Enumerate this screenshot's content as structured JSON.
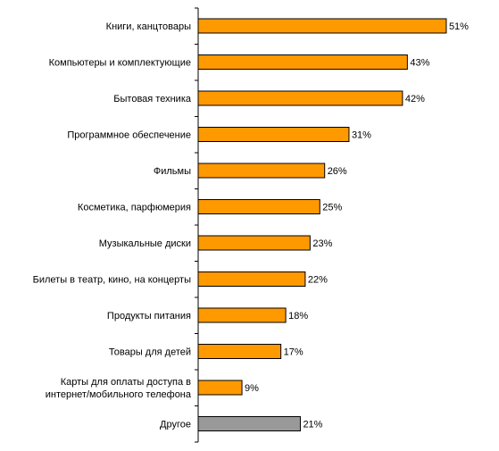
{
  "chart_data": {
    "type": "bar",
    "orientation": "horizontal",
    "categories": [
      [
        "Книги, канцтовары"
      ],
      [
        "Компьютеры и комплектующие"
      ],
      [
        "Бытовая техника"
      ],
      [
        "Программное обеспечение"
      ],
      [
        "Фильмы"
      ],
      [
        "Косметика, парфюмерия"
      ],
      [
        "Музыкальные диски"
      ],
      [
        "Билеты в театр, кино, на концерты"
      ],
      [
        "Продукты питания"
      ],
      [
        "Товары для детей"
      ],
      [
        "Карты для оплаты доступа в",
        "интернет/мобильного телефона"
      ],
      [
        "Другое"
      ]
    ],
    "values": [
      51,
      43,
      42,
      31,
      26,
      25,
      23,
      22,
      18,
      17,
      9,
      21
    ],
    "value_labels": [
      "51%",
      "43%",
      "42%",
      "31%",
      "26%",
      "25%",
      "23%",
      "22%",
      "18%",
      "17%",
      "9%",
      "21%"
    ],
    "bar_colors": [
      "#FF9900",
      "#FF9900",
      "#FF9900",
      "#FF9900",
      "#FF9900",
      "#FF9900",
      "#FF9900",
      "#FF9900",
      "#FF9900",
      "#FF9900",
      "#FF9900",
      "#999999"
    ],
    "title": "",
    "xlabel": "",
    "ylabel": "",
    "xlim": [
      0,
      55
    ],
    "grid": false,
    "legend": "none"
  }
}
